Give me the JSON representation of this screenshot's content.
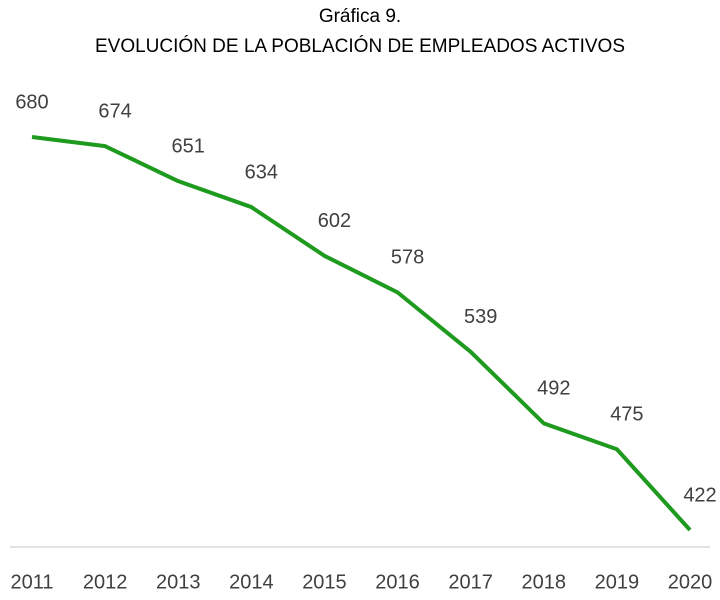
{
  "chart_data": {
    "type": "line",
    "title": "Gráfica 9.",
    "subtitle": "EVOLUCIÓN DE LA POBLACIÓN DE EMPLEADOS ACTIVOS",
    "categories": [
      "2011",
      "2012",
      "2013",
      "2014",
      "2015",
      "2016",
      "2017",
      "2018",
      "2019",
      "2020"
    ],
    "series": [
      {
        "color": "#1e9a1e",
        "values": [
          680,
          674,
          651,
          634,
          602,
          578,
          539,
          492,
          475,
          422
        ]
      }
    ],
    "grid": false
  }
}
